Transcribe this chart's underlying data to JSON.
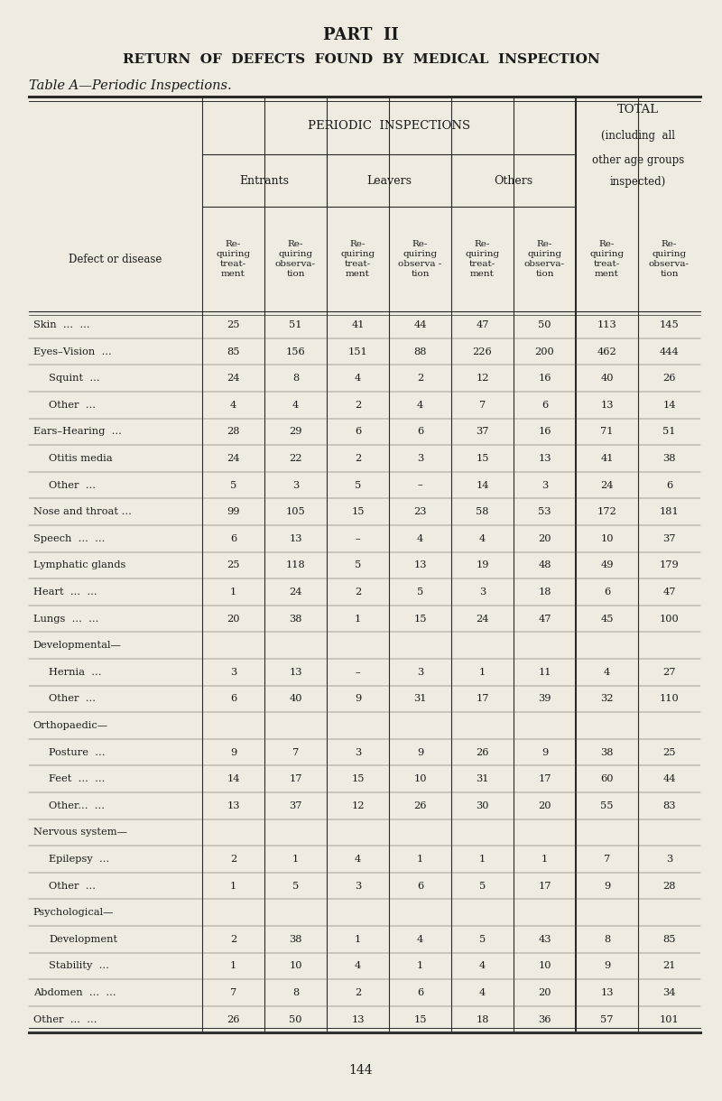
{
  "part_title": "PART  II",
  "main_title": "RETURN  OF  DEFECTS  FOUND  BY  MEDICAL  INSPECTION",
  "table_title": "Table A—Periodic Inspections.",
  "page_number": "144",
  "bg_color": "#f0ebe0",
  "text_color": "#1a1a1a",
  "periodic_header": "PERIODIC  INSPECTIONS",
  "total_header_line1": "TOTAL",
  "total_header_line2": "(including  all",
  "total_header_line3": "other age groups",
  "total_header_line4": "inspected)",
  "subgroup_headers": [
    "Entrants",
    "Leavers",
    "Others"
  ],
  "row_label_col": "Defect or disease",
  "rows": [
    {
      "label": "Skin  ...  ...",
      "indent": 0,
      "values": [
        "25",
        "51",
        "41",
        "44",
        "47",
        "50",
        "113",
        "145"
      ]
    },
    {
      "label": "Eyes–Vision  ...",
      "indent": 0,
      "values": [
        "85",
        "156",
        "151",
        "88",
        "226",
        "200",
        "462",
        "444"
      ]
    },
    {
      "label": "Squint  ...",
      "indent": 1,
      "values": [
        "24",
        "8",
        "4",
        "2",
        "12",
        "16",
        "40",
        "26"
      ]
    },
    {
      "label": "Other  ...",
      "indent": 1,
      "values": [
        "4",
        "4",
        "2",
        "4",
        "7",
        "6",
        "13",
        "14"
      ]
    },
    {
      "label": "Ears–Hearing  ...",
      "indent": 0,
      "values": [
        "28",
        "29",
        "6",
        "6",
        "37",
        "16",
        "71",
        "51"
      ]
    },
    {
      "label": "Otitis media",
      "indent": 1,
      "values": [
        "24",
        "22",
        "2",
        "3",
        "15",
        "13",
        "41",
        "38"
      ]
    },
    {
      "label": "Other  ...",
      "indent": 1,
      "values": [
        "5",
        "3",
        "5",
        "–",
        "14",
        "3",
        "24",
        "6"
      ]
    },
    {
      "label": "Nose and throat ...",
      "indent": 0,
      "values": [
        "99",
        "105",
        "15",
        "23",
        "58",
        "53",
        "172",
        "181"
      ]
    },
    {
      "label": "Speech  ...  ...",
      "indent": 0,
      "values": [
        "6",
        "13",
        "–",
        "4",
        "4",
        "20",
        "10",
        "37"
      ]
    },
    {
      "label": "Lymphatic glands",
      "indent": 0,
      "values": [
        "25",
        "118",
        "5",
        "13",
        "19",
        "48",
        "49",
        "179"
      ]
    },
    {
      "label": "Heart  ...  ...",
      "indent": 0,
      "values": [
        "1",
        "24",
        "2",
        "5",
        "3",
        "18",
        "6",
        "47"
      ]
    },
    {
      "label": "Lungs  ...  ...",
      "indent": 0,
      "values": [
        "20",
        "38",
        "1",
        "15",
        "24",
        "47",
        "45",
        "100"
      ]
    },
    {
      "label": "Developmental—",
      "indent": 0,
      "values": [
        "",
        "",
        "",
        "",
        "",
        "",
        "",
        ""
      ]
    },
    {
      "label": "Hernia  ...",
      "indent": 1,
      "values": [
        "3",
        "13",
        "–",
        "3",
        "1",
        "11",
        "4",
        "27"
      ]
    },
    {
      "label": "Other  ...",
      "indent": 1,
      "values": [
        "6",
        "40",
        "9",
        "31",
        "17",
        "39",
        "32",
        "110"
      ]
    },
    {
      "label": "Orthopaedic—",
      "indent": 0,
      "values": [
        "",
        "",
        "",
        "",
        "",
        "",
        "",
        ""
      ]
    },
    {
      "label": "Posture  ...",
      "indent": 1,
      "values": [
        "9",
        "7",
        "3",
        "9",
        "26",
        "9",
        "38",
        "25"
      ]
    },
    {
      "label": "Feet  ...  ...",
      "indent": 1,
      "values": [
        "14",
        "17",
        "15",
        "10",
        "31",
        "17",
        "60",
        "44"
      ]
    },
    {
      "label": "Other...  ...",
      "indent": 1,
      "values": [
        "13",
        "37",
        "12",
        "26",
        "30",
        "20",
        "55",
        "83"
      ]
    },
    {
      "label": "Nervous system—",
      "indent": 0,
      "values": [
        "",
        "",
        "",
        "",
        "",
        "",
        "",
        ""
      ]
    },
    {
      "label": "Epilepsy  ...",
      "indent": 1,
      "values": [
        "2",
        "1",
        "4",
        "1",
        "1",
        "1",
        "7",
        "3"
      ]
    },
    {
      "label": "Other  ...",
      "indent": 1,
      "values": [
        "1",
        "5",
        "3",
        "6",
        "5",
        "17",
        "9",
        "28"
      ]
    },
    {
      "label": "Psychological—",
      "indent": 0,
      "values": [
        "",
        "",
        "",
        "",
        "",
        "",
        "",
        ""
      ]
    },
    {
      "label": "Development",
      "indent": 1,
      "values": [
        "2",
        "38",
        "1",
        "4",
        "5",
        "43",
        "8",
        "85"
      ]
    },
    {
      "label": "Stability  ...",
      "indent": 1,
      "values": [
        "1",
        "10",
        "4",
        "1",
        "4",
        "10",
        "9",
        "21"
      ]
    },
    {
      "label": "Abdomen  ...  ...",
      "indent": 0,
      "values": [
        "7",
        "8",
        "2",
        "6",
        "4",
        "20",
        "13",
        "34"
      ]
    },
    {
      "label": "Other  ...  ...",
      "indent": 0,
      "values": [
        "26",
        "50",
        "13",
        "15",
        "18",
        "36",
        "57",
        "101"
      ]
    }
  ]
}
